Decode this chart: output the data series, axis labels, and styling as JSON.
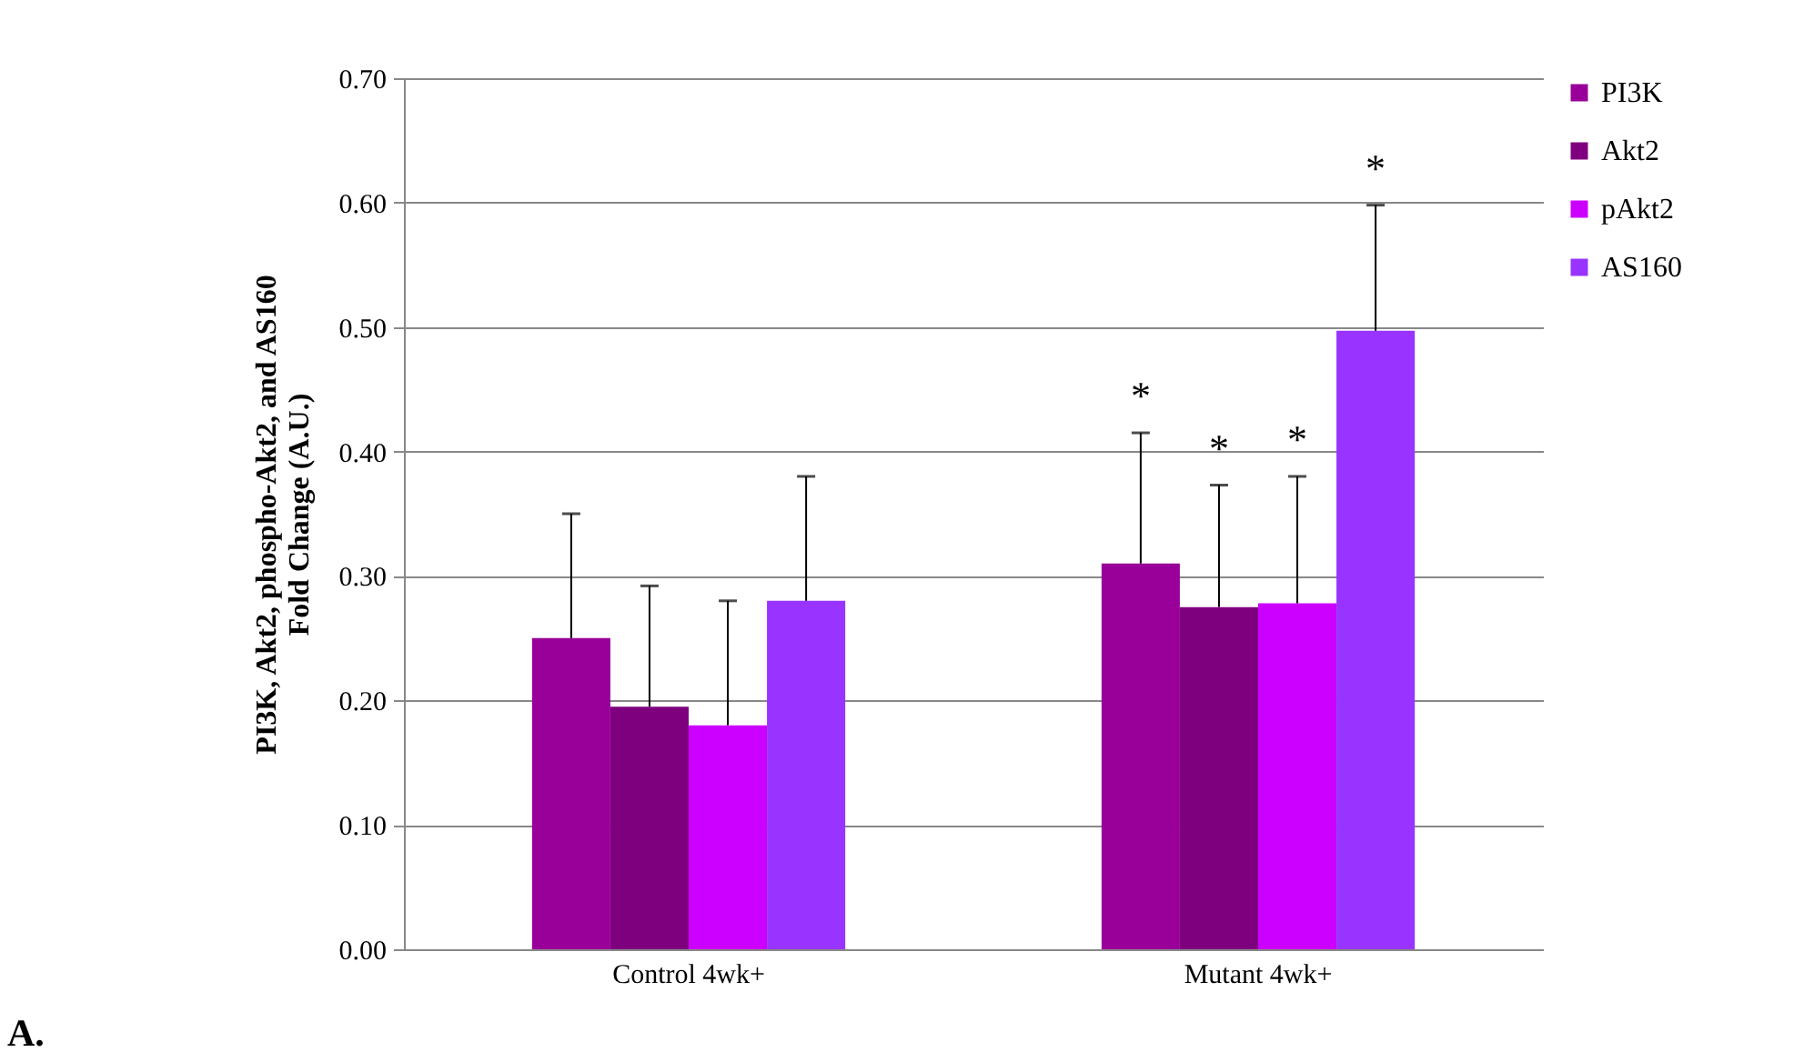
{
  "chart_data": {
    "type": "bar",
    "ylabel": "PI3K, Akt2, phospho-Akt2, and AS160\nFold Change (A.U.)",
    "categories": [
      "Control 4wk+",
      "Mutant 4wk+"
    ],
    "series": [
      {
        "name": "PI3K",
        "color": "#990099",
        "values": [
          0.25,
          0.31
        ],
        "errors": [
          [
            0.25,
            0.35
          ],
          [
            0.31,
            0.415
          ]
        ]
      },
      {
        "name": "Akt2",
        "color": "#7f007f",
        "values": [
          0.195,
          0.275
        ],
        "errors": [
          [
            0.195,
            0.292
          ],
          [
            0.275,
            0.373
          ]
        ]
      },
      {
        "name": "pAkt2",
        "color": "#cc00ff",
        "values": [
          0.18,
          0.278
        ],
        "errors": [
          [
            0.18,
            0.28
          ],
          [
            0.278,
            0.38
          ]
        ]
      },
      {
        "name": "AS160",
        "color": "#9933ff",
        "values": [
          0.28,
          0.497
        ],
        "errors": [
          [
            0.28,
            0.38
          ],
          [
            0.497,
            0.598
          ]
        ]
      }
    ],
    "ylim": [
      0,
      0.7
    ],
    "yticks": [
      {
        "value": 0,
        "label": "0.00"
      },
      {
        "value": 0.1,
        "label": "0.10"
      },
      {
        "value": 0.2,
        "label": "0.20"
      },
      {
        "value": 0.3,
        "label": "0.30"
      },
      {
        "value": 0.4,
        "label": "0.40"
      },
      {
        "value": 0.5,
        "label": "0.50"
      },
      {
        "value": 0.6,
        "label": "0.60"
      },
      {
        "value": 0.7,
        "label": "0.70"
      }
    ],
    "grid": "y",
    "legend": "right",
    "annotations": [
      "*",
      "*",
      "*",
      "*",
      "A."
    ]
  }
}
